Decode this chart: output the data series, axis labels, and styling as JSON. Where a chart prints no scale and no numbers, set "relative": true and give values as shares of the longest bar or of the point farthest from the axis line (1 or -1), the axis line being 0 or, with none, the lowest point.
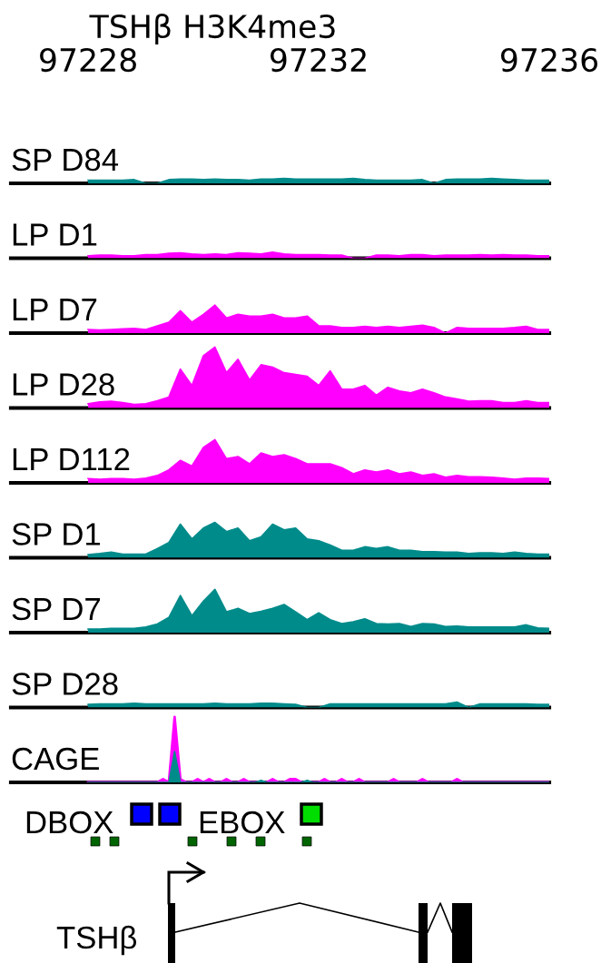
{
  "chart_data": [
    {
      "type": "area",
      "relative": true,
      "title": "TSHβ H3K4me3",
      "xlim": [
        97226.66,
        97236.0
      ],
      "xticks": [
        97228,
        97232,
        97236
      ],
      "tick_labels": "x",
      "x": [
        97228.0,
        97228.2,
        97228.4,
        97228.6,
        97228.8,
        97229.0,
        97229.2,
        97229.4,
        97229.6,
        97229.8,
        97230.0,
        97230.2,
        97230.4,
        97230.6,
        97230.8,
        97231.0,
        97231.2,
        97231.4,
        97231.6,
        97231.8,
        97232.0,
        97232.2,
        97232.4,
        97232.6,
        97232.8,
        97233.0,
        97233.2,
        97233.4,
        97233.6,
        97233.8,
        97234.0,
        97234.2,
        97234.4,
        97234.6,
        97234.8,
        97235.0,
        97235.2,
        97235.4,
        97235.6,
        97235.8,
        97236.0
      ],
      "series": [
        {
          "name": "SP D84",
          "color": "#008b8b",
          "values": [
            0.63,
            0.63,
            0.63,
            0.63,
            0.75,
            0,
            0,
            0.75,
            0.88,
            0.88,
            0.75,
            0.88,
            0.75,
            0.75,
            0.63,
            0.88,
            0.88,
            1,
            0.88,
            0.88,
            0.88,
            0.88,
            0.88,
            1,
            0.75,
            0.63,
            0.63,
            0.63,
            0.63,
            0.75,
            0,
            0.75,
            0.88,
            0.88,
            0.88,
            1,
            0.88,
            0.75,
            0.63,
            0.63,
            0.63
          ]
        }
      ]
    },
    {
      "type": "area",
      "relative": true,
      "tick_labels": false,
      "categories": [
        null,
        null,
        null,
        null,
        null,
        null,
        null,
        null,
        null,
        null,
        null,
        null,
        null,
        null,
        null,
        null,
        null,
        null,
        null,
        null,
        null,
        null,
        null,
        null,
        null,
        null,
        null,
        null,
        null,
        null,
        null,
        null,
        null,
        null,
        null,
        null,
        null,
        null,
        null,
        null,
        null
      ],
      "series": [
        {
          "name": "LP D1",
          "color": "#ff00ff",
          "values": [
            0.4,
            0.5,
            0.5,
            0.4,
            0.4,
            0.6,
            0.6,
            0.8,
            0.9,
            0.7,
            0.6,
            0.7,
            0.6,
            0.9,
            0.8,
            0.7,
            1,
            0.7,
            0.6,
            0.6,
            0.6,
            0.5,
            0.5,
            0,
            0,
            0.5,
            0.5,
            0.4,
            0.6,
            0.6,
            0.4,
            0.5,
            0.5,
            0.5,
            0.6,
            0.5,
            0.6,
            0.5,
            0.5,
            0.4,
            0.4
          ]
        }
      ]
    },
    {
      "type": "area",
      "relative": true,
      "tick_labels": false,
      "categories": [
        null,
        null,
        null,
        null,
        null,
        null,
        null,
        null,
        null,
        null,
        null,
        null,
        null,
        null,
        null,
        null,
        null,
        null,
        null,
        null,
        null,
        null,
        null,
        null,
        null,
        null,
        null,
        null,
        null,
        null,
        null,
        null,
        null,
        null,
        null,
        null,
        null,
        null,
        null,
        null,
        null
      ],
      "series": [
        {
          "name": "LP D7",
          "color": "#ff00ff",
          "values": [
            0.13,
            0.11,
            0.13,
            0.15,
            0.17,
            0.13,
            0.26,
            0.39,
            0.8,
            0.39,
            0.67,
            1,
            0.54,
            0.67,
            0.61,
            0.61,
            0.67,
            0.54,
            0.54,
            0.61,
            0.26,
            0.26,
            0.2,
            0.2,
            0.24,
            0.2,
            0.24,
            0.2,
            0.24,
            0.28,
            0.2,
            0,
            0.2,
            0.17,
            0.17,
            0.17,
            0.17,
            0.2,
            0.24,
            0.13,
            0.13
          ]
        }
      ]
    },
    {
      "type": "area",
      "relative": true,
      "tick_labels": false,
      "categories": [
        null,
        null,
        null,
        null,
        null,
        null,
        null,
        null,
        null,
        null,
        null,
        null,
        null,
        null,
        null,
        null,
        null,
        null,
        null,
        null,
        null,
        null,
        null,
        null,
        null,
        null,
        null,
        null,
        null,
        null,
        null,
        null,
        null,
        null,
        null,
        null,
        null,
        null,
        null,
        null,
        null
      ],
      "series": [
        {
          "name": "LP D28",
          "color": "#ff00ff",
          "values": [
            0.07,
            0.1,
            0.11,
            0.09,
            0.06,
            0.07,
            0.12,
            0.18,
            0.64,
            0.37,
            0.86,
            1.0,
            0.58,
            0.8,
            0.46,
            0.71,
            0.67,
            0.58,
            0.55,
            0.52,
            0.37,
            0.61,
            0.31,
            0.31,
            0.37,
            0.21,
            0.34,
            0.28,
            0.25,
            0.31,
            0.25,
            0.18,
            0.15,
            0.11,
            0.12,
            0.12,
            0.09,
            0.09,
            0.12,
            0.09,
            0.09
          ]
        }
      ]
    },
    {
      "type": "area",
      "relative": true,
      "tick_labels": false,
      "categories": [
        null,
        null,
        null,
        null,
        null,
        null,
        null,
        null,
        null,
        null,
        null,
        null,
        null,
        null,
        null,
        null,
        null,
        null,
        null,
        null,
        null,
        null,
        null,
        null,
        null,
        null,
        null,
        null,
        null,
        null,
        null,
        null,
        null,
        null,
        null,
        null,
        null,
        null,
        null,
        null,
        null
      ],
      "series": [
        {
          "name": "LP D112",
          "color": "#ff00ff",
          "values": [
            0.1,
            0.08,
            0.1,
            0.1,
            0.08,
            0.11,
            0.17,
            0.3,
            0.52,
            0.39,
            0.82,
            1,
            0.56,
            0.61,
            0.44,
            0.69,
            0.61,
            0.65,
            0.56,
            0.44,
            0.44,
            0.44,
            0.35,
            0.21,
            0.3,
            0.25,
            0.3,
            0.21,
            0.25,
            0.17,
            0.21,
            0.13,
            0.17,
            0.14,
            0.14,
            0.13,
            0.11,
            0.08,
            0.11,
            0.11,
            0.1
          ]
        }
      ]
    },
    {
      "type": "area",
      "relative": true,
      "tick_labels": false,
      "categories": [
        null,
        null,
        null,
        null,
        null,
        null,
        null,
        null,
        null,
        null,
        null,
        null,
        null,
        null,
        null,
        null,
        null,
        null,
        null,
        null,
        null,
        null,
        null,
        null,
        null,
        null,
        null,
        null,
        null,
        null,
        null,
        null,
        null,
        null,
        null,
        null,
        null,
        null,
        null,
        null,
        null
      ],
      "series": [
        {
          "name": "SP D1",
          "color": "#008b8b",
          "values": [
            0.09,
            0.12,
            0.16,
            0.1,
            0.1,
            0.1,
            0.26,
            0.43,
            0.95,
            0.53,
            0.84,
            1,
            0.74,
            0.84,
            0.48,
            0.59,
            0.95,
            0.79,
            0.84,
            0.53,
            0.48,
            0.36,
            0.21,
            0.21,
            0.31,
            0.26,
            0.31,
            0.21,
            0.21,
            0.17,
            0.17,
            0.16,
            0.16,
            0.12,
            0.14,
            0.14,
            0.12,
            0.16,
            0.12,
            0.1,
            0.1
          ]
        }
      ]
    },
    {
      "type": "area",
      "relative": true,
      "tick_labels": false,
      "categories": [
        null,
        null,
        null,
        null,
        null,
        null,
        null,
        null,
        null,
        null,
        null,
        null,
        null,
        null,
        null,
        null,
        null,
        null,
        null,
        null,
        null,
        null,
        null,
        null,
        null,
        null,
        null,
        null,
        null,
        null,
        null,
        null,
        null,
        null,
        null,
        null,
        null,
        null,
        null,
        null,
        null
      ],
      "series": [
        {
          "name": "SP D7",
          "color": "#008b8b",
          "values": [
            0.08,
            0.08,
            0.1,
            0.1,
            0.1,
            0.13,
            0.2,
            0.35,
            0.86,
            0.39,
            0.73,
            1,
            0.48,
            0.56,
            0.44,
            0.49,
            0.56,
            0.65,
            0.48,
            0.3,
            0.46,
            0.3,
            0.21,
            0.25,
            0.32,
            0.21,
            0.2,
            0.21,
            0.14,
            0.21,
            0.2,
            0.14,
            0.15,
            0.13,
            0.13,
            0.13,
            0.13,
            0.13,
            0.18,
            0.11,
            0.1
          ]
        }
      ]
    },
    {
      "type": "area",
      "relative": true,
      "tick_labels": false,
      "categories": [
        null,
        null,
        null,
        null,
        null,
        null,
        null,
        null,
        null,
        null,
        null,
        null,
        null,
        null,
        null,
        null,
        null,
        null,
        null,
        null,
        null,
        null,
        null,
        null,
        null,
        null,
        null,
        null,
        null,
        null,
        null,
        null,
        null,
        null,
        null,
        null,
        null,
        null,
        null,
        null,
        null
      ],
      "series": [
        {
          "name": "SP D28",
          "color": "#008b8b",
          "values": [
            0.56,
            0.67,
            0.67,
            0.67,
            0.78,
            0.67,
            0.67,
            0.67,
            0.67,
            0.67,
            0.67,
            0.78,
            0.67,
            0.67,
            0.67,
            0.78,
            0.78,
            0.67,
            0.56,
            0,
            0,
            0.67,
            0.67,
            0.67,
            0.67,
            0.67,
            0.67,
            0.67,
            0.67,
            0.67,
            0.67,
            0.67,
            1,
            0,
            0.67,
            0.67,
            0.67,
            0.67,
            0.67,
            0.56,
            0.56
          ]
        }
      ]
    },
    {
      "type": "area",
      "relative": true,
      "tick_labels": false,
      "categories": [
        null,
        null,
        null,
        null,
        null,
        null,
        null,
        null,
        null,
        null,
        null,
        null,
        null,
        null,
        null,
        null,
        null,
        null,
        null,
        null,
        null,
        null,
        null,
        null,
        null,
        null,
        null,
        null,
        null,
        null,
        null,
        null,
        null,
        null,
        null,
        null,
        null,
        null,
        null,
        null,
        null,
        null,
        null,
        null,
        null,
        null,
        null,
        null,
        null,
        null,
        null,
        null,
        null,
        null,
        null,
        null,
        null,
        null,
        null,
        null,
        null,
        null,
        null,
        null,
        null,
        null,
        null,
        null,
        null,
        null,
        null,
        null,
        null,
        null,
        null,
        null,
        null,
        null,
        null,
        null,
        null
      ],
      "series": [
        {
          "name": "CAGE",
          "color": "#ff00ff",
          "values": [
            0,
            0,
            0,
            0,
            0,
            0,
            0,
            0,
            0,
            0,
            0,
            0,
            0,
            0.05,
            0,
            1.0,
            0.05,
            0,
            0,
            0.05,
            0,
            0.05,
            0,
            0,
            0.05,
            0,
            0,
            0.05,
            0,
            0,
            0,
            0,
            0.05,
            0,
            0,
            0.05,
            0.05,
            0,
            0,
            0,
            0,
            0.05,
            0,
            0,
            0.05,
            0,
            0,
            0.05,
            0,
            0,
            0,
            0,
            0,
            0.05,
            0,
            0,
            0,
            0,
            0.05,
            0,
            0,
            0,
            0,
            0,
            0.05,
            0,
            0,
            0,
            0,
            0,
            0,
            0,
            0,
            0,
            0,
            0,
            0,
            0,
            0,
            0,
            0
          ]
        },
        {
          "color": "#008b8b",
          "values": [
            0,
            0,
            0,
            0,
            0,
            0,
            0,
            0,
            0,
            0,
            0,
            0,
            0,
            0,
            0,
            0.47,
            0,
            0,
            0,
            0,
            0,
            0,
            0,
            0,
            0,
            0,
            0,
            0,
            0,
            0,
            0.03,
            0,
            0,
            0,
            0,
            0,
            0,
            0,
            0.03,
            0,
            0,
            0,
            0,
            0,
            0,
            0,
            0,
            0,
            0,
            0,
            0,
            0,
            0,
            0,
            0,
            0,
            0,
            0,
            0,
            0,
            0,
            0,
            0,
            0,
            0,
            0,
            0,
            0,
            0,
            0,
            0,
            0,
            0,
            0,
            0,
            0,
            0,
            0,
            0,
            0,
            0
          ]
        }
      ]
    },
    {
      "type": "other",
      "annotations": [
        "DBOX",
        "EBOX",
        "TSHβ"
      ]
    }
  ]
}
